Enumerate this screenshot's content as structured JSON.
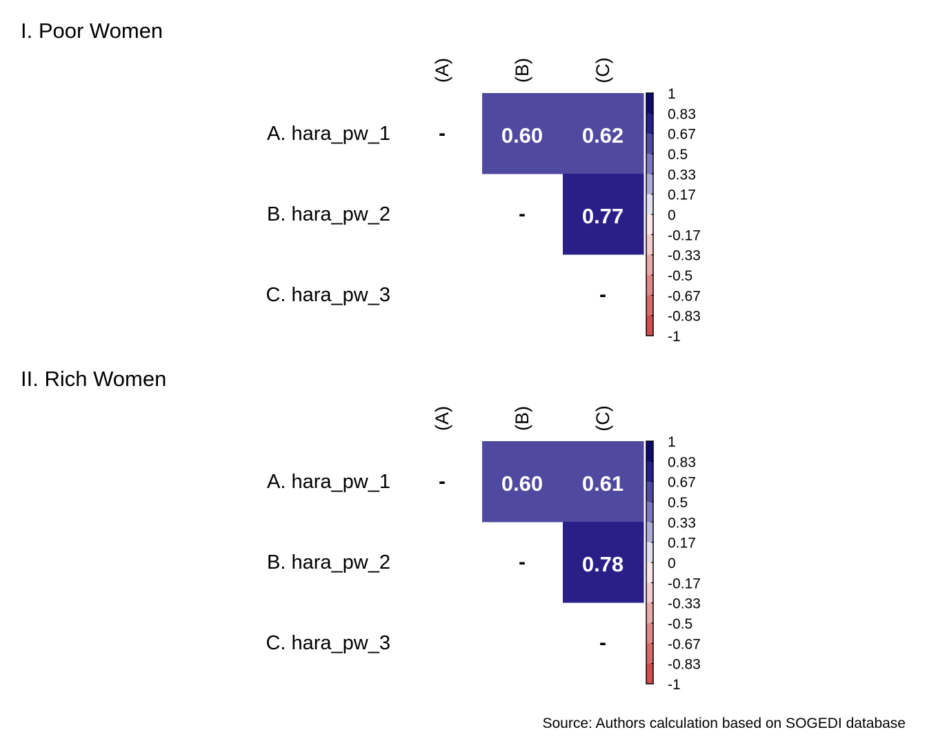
{
  "source": "Source: Authors calculation based on SOGEDI database",
  "chart_data": [
    {
      "type": "heatmap",
      "title": "I. Poor Women",
      "rows": [
        "A. hara_pw_1",
        "B. hara_pw_2",
        "C. hara_pw_3"
      ],
      "columns": [
        "(A)",
        "(B)",
        "(C)"
      ],
      "values": [
        [
          null,
          0.6,
          0.62
        ],
        [
          null,
          null,
          0.77
        ],
        [
          null,
          null,
          null
        ]
      ],
      "labels": [
        [
          "-",
          "0.60",
          "0.62"
        ],
        [
          "",
          "-",
          "0.77"
        ],
        [
          "",
          "",
          "-"
        ]
      ],
      "colorbar": {
        "range": [
          -1,
          1
        ],
        "ticks": [
          "1",
          "0.83",
          "0.67",
          "0.5",
          "0.33",
          "0.17",
          "0",
          "-0.17",
          "-0.33",
          "-0.5",
          "-0.67",
          "-0.83",
          "-1"
        ]
      }
    },
    {
      "type": "heatmap",
      "title": "II. Rich Women",
      "rows": [
        "A. hara_pw_1",
        "B. hara_pw_2",
        "C. hara_pw_3"
      ],
      "columns": [
        "(A)",
        "(B)",
        "(C)"
      ],
      "values": [
        [
          null,
          0.6,
          0.61
        ],
        [
          null,
          null,
          0.78
        ],
        [
          null,
          null,
          null
        ]
      ],
      "labels": [
        [
          "-",
          "0.60",
          "0.61"
        ],
        [
          "",
          "-",
          "0.78"
        ],
        [
          "",
          "",
          "-"
        ]
      ],
      "colorbar": {
        "range": [
          -1,
          1
        ],
        "ticks": [
          "1",
          "0.83",
          "0.67",
          "0.5",
          "0.33",
          "0.17",
          "0",
          "-0.17",
          "-0.33",
          "-0.5",
          "-0.67",
          "-0.83",
          "-1"
        ]
      }
    }
  ],
  "colors": {
    "bins": [
      "#0e0c6e",
      "#26208a",
      "#4f4aa2",
      "#7b76bd",
      "#aeabd7",
      "#e2e1f1",
      "#fbe7e7",
      "#f4cccc",
      "#eaa9a9",
      "#e28888",
      "#da6a6a",
      "#d24d4d"
    ],
    "cell_mid": "#5049a0",
    "cell_high": "#2a1f87"
  }
}
